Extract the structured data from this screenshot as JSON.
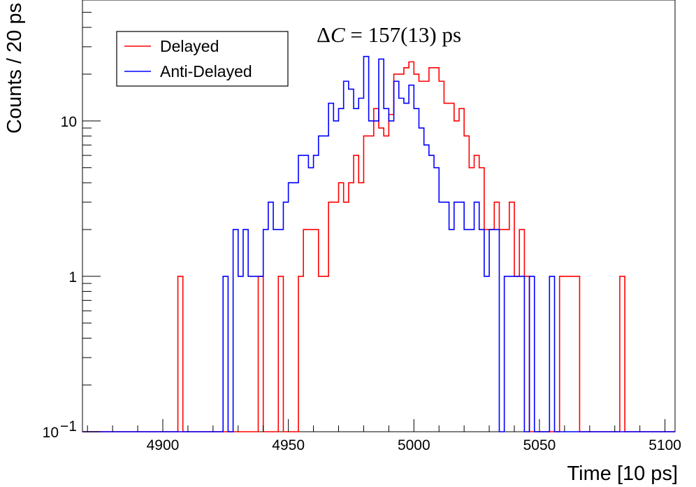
{
  "chart_data": {
    "type": "histogram",
    "xlabel": "Time [10 ps]",
    "ylabel": "Counts / 20 ps",
    "xlim": [
      4868,
      5104
    ],
    "ylim": [
      0.1,
      60
    ],
    "yscale": "log",
    "bin_width": 2,
    "grid": false,
    "legend": {
      "placement": "top-left",
      "entries": [
        "Delayed",
        "Anti-Delayed"
      ]
    },
    "annotation": {
      "symbol": "Δ",
      "variable": "C",
      "text": " = 157(13) ps"
    },
    "x_ticks": [
      {
        "value": 4900,
        "label": "4900"
      },
      {
        "value": 4950,
        "label": "4950"
      },
      {
        "value": 5000,
        "label": "5000"
      },
      {
        "value": 5050,
        "label": "5050"
      },
      {
        "value": 5100,
        "label": "5100"
      }
    ],
    "y_ticks": [
      {
        "value": 0.1,
        "label": "10",
        "sup": "−1"
      },
      {
        "value": 1,
        "label": "1",
        "sup": ""
      },
      {
        "value": 10,
        "label": "10",
        "sup": ""
      }
    ],
    "series": [
      {
        "name": "Delayed",
        "color": "#ff0000",
        "bins_x": [
          4906,
          4938,
          4946,
          4954,
          4956,
          4958,
          4960,
          4962,
          4964,
          4966,
          4968,
          4970,
          4972,
          4974,
          4976,
          4978,
          4980,
          4982,
          4984,
          4986,
          4988,
          4990,
          4992,
          4994,
          4996,
          4998,
          5000,
          5002,
          5004,
          5006,
          5008,
          5010,
          5012,
          5014,
          5016,
          5018,
          5020,
          5022,
          5024,
          5026,
          5028,
          5030,
          5032,
          5034,
          5036,
          5038,
          5040,
          5042,
          5044,
          5058,
          5060,
          5062,
          5064,
          5082
        ],
        "counts": [
          1,
          1,
          1,
          1,
          2,
          2,
          2,
          1,
          1,
          3,
          3,
          4,
          3,
          4,
          6,
          4,
          8,
          8,
          12,
          9,
          8,
          11,
          20,
          20,
          22,
          24,
          20,
          18,
          18,
          22,
          22,
          18,
          13,
          13,
          10,
          12,
          8,
          5,
          6,
          5,
          2,
          2,
          3,
          2,
          2,
          3,
          1,
          2,
          1,
          1,
          1,
          1,
          1,
          1
        ]
      },
      {
        "name": "Anti-Delayed",
        "color": "#0000ff",
        "bins_x": [
          4924,
          4928,
          4930,
          4932,
          4934,
          4936,
          4938,
          4940,
          4942,
          4944,
          4946,
          4948,
          4950,
          4952,
          4954,
          4956,
          4958,
          4960,
          4962,
          4964,
          4966,
          4968,
          4970,
          4972,
          4974,
          4976,
          4978,
          4980,
          4982,
          4984,
          4986,
          4988,
          4990,
          4992,
          4994,
          4996,
          4998,
          5000,
          5002,
          5004,
          5006,
          5008,
          5010,
          5012,
          5014,
          5016,
          5018,
          5020,
          5022,
          5024,
          5026,
          5028,
          5030,
          5032,
          5036,
          5038,
          5040,
          5042,
          5046,
          5054
        ],
        "counts": [
          1,
          2,
          1,
          2,
          1,
          1,
          1,
          2,
          3,
          2,
          2,
          3,
          4,
          4,
          6,
          6,
          5,
          6,
          8,
          8,
          13,
          10,
          12,
          18,
          16,
          12,
          14,
          26,
          10,
          10,
          25,
          12,
          10,
          18,
          14,
          13,
          17,
          12,
          9,
          7,
          6,
          5,
          3,
          3,
          2,
          3,
          3,
          2,
          2,
          3,
          2,
          1,
          2,
          2,
          1,
          1,
          1,
          1,
          1,
          1
        ]
      }
    ]
  }
}
